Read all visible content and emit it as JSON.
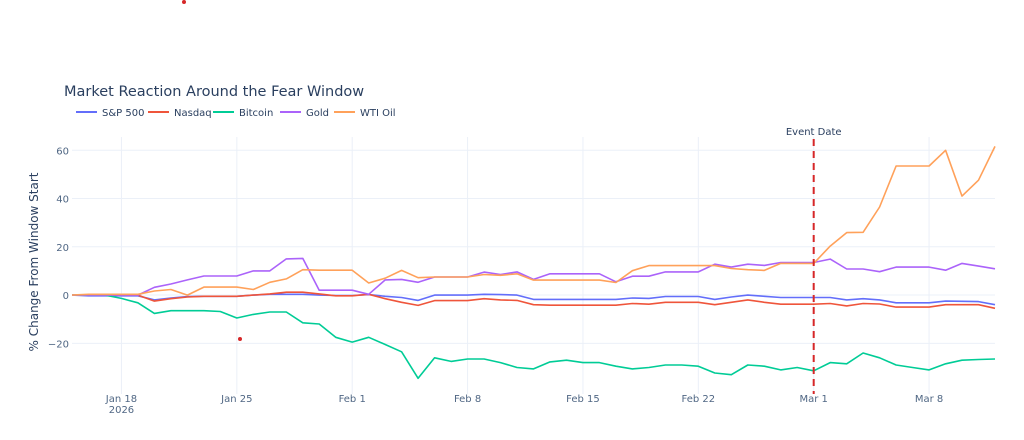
{
  "chart_data": {
    "type": "line",
    "title": "Market Reaction Around the Fear Window",
    "xlabel": "",
    "ylabel": "% Change From Window Start",
    "x_start": "2026-01-15",
    "x_end": "2026-03-12",
    "x_ticks": [
      {
        "date": "2026-01-18",
        "label": "Jan 18",
        "sublabel": "2026"
      },
      {
        "date": "2026-01-25",
        "label": "Jan 25"
      },
      {
        "date": "2026-02-01",
        "label": "Feb 1"
      },
      {
        "date": "2026-02-08",
        "label": "Feb 8"
      },
      {
        "date": "2026-02-15",
        "label": "Feb 15"
      },
      {
        "date": "2026-02-22",
        "label": "Feb 22"
      },
      {
        "date": "2026-03-01",
        "label": "Mar 1"
      },
      {
        "date": "2026-03-08",
        "label": "Mar 8"
      }
    ],
    "y_ticks": [
      -20,
      0,
      20,
      40,
      60
    ],
    "y_tick_labels": [
      "−20",
      "0",
      "20",
      "40",
      "60"
    ],
    "ylim": [
      -41,
      65.5
    ],
    "grid": true,
    "legend_placement": "top-left, horizontal",
    "event": {
      "date": "2026-03-01",
      "label": "Event Date",
      "color": "#d62728"
    },
    "series": [
      {
        "name": "S&P 500",
        "color": "#636efa",
        "values": [
          0,
          -0.3,
          -0.3,
          -0.3,
          -0.3,
          -2,
          -1.2,
          -0.6,
          -0.5,
          -0.5,
          -0.5,
          0,
          0.3,
          0.3,
          0.3,
          0,
          -0.2,
          -0.2,
          0.2,
          -0.5,
          -1,
          -2.2,
          0,
          0,
          0,
          0.3,
          0.2,
          0,
          -1.8,
          -1.8,
          -1.8,
          -1.8,
          -1.8,
          -1.8,
          -1.2,
          -1.4,
          -0.6,
          -0.6,
          -0.6,
          -1.8,
          -0.8,
          0,
          -0.5,
          -1,
          -1,
          -1,
          -1,
          -2,
          -1.5,
          -2,
          -3.2,
          -3.2,
          -3.2,
          -2.5,
          -2.6,
          -2.7,
          -4
        ]
      },
      {
        "name": "Nasdaq",
        "color": "#EF553B",
        "values": [
          0,
          0,
          0,
          0,
          0,
          -2.5,
          -1.5,
          -0.8,
          -0.5,
          -0.5,
          -0.5,
          0,
          0.5,
          1.2,
          1.2,
          0.5,
          -0.3,
          -0.3,
          0.3,
          -1.5,
          -3,
          -4.3,
          -2.3,
          -2.3,
          -2.3,
          -1.5,
          -2,
          -2.2,
          -4,
          -4.2,
          -4.2,
          -4.2,
          -4.2,
          -4.2,
          -3.5,
          -3.8,
          -3,
          -3,
          -3,
          -4,
          -3,
          -2,
          -3,
          -3.8,
          -3.8,
          -3.8,
          -3.5,
          -4.5,
          -3.5,
          -3.7,
          -5,
          -5,
          -5,
          -4,
          -4,
          -4,
          -5.5
        ]
      },
      {
        "name": "Bitcoin",
        "color": "#00cc96",
        "values": [
          0,
          0,
          0,
          -1.4,
          -3.2,
          -7.6,
          -6.5,
          -6.5,
          -6.5,
          -6.8,
          -9.5,
          -8,
          -7,
          -7,
          -11.5,
          -12,
          -17.5,
          -19.5,
          -17.5,
          -20.5,
          -23.5,
          -34.5,
          -26,
          -27.5,
          -26.5,
          -26.5,
          -28,
          -30,
          -30.6,
          -27.7,
          -27,
          -28,
          -28,
          -29.5,
          -30.6,
          -30,
          -29,
          -29,
          -29.5,
          -32.3,
          -33,
          -29,
          -29.5,
          -31,
          -30,
          -31.4,
          -28,
          -28.5,
          -24,
          -26,
          -29,
          -30,
          -31,
          -28.5,
          -27,
          -26.7,
          -26.5
        ]
      },
      {
        "name": "Gold",
        "color": "#ab63fa",
        "values": [
          0,
          0,
          0,
          0,
          0,
          3.2,
          4.6,
          6.3,
          7.9,
          7.9,
          7.9,
          10,
          10,
          15,
          15.2,
          2,
          2,
          2,
          0.3,
          6.3,
          6.5,
          5.3,
          7.5,
          7.5,
          7.5,
          9.5,
          8.5,
          9.6,
          6.5,
          8.8,
          8.8,
          8.8,
          8.8,
          5.5,
          7.8,
          7.8,
          9.6,
          9.6,
          9.6,
          12.8,
          11.6,
          12.8,
          12.3,
          13.5,
          13.5,
          13.5,
          14.9,
          10.8,
          10.8,
          9.7,
          11.6,
          11.6,
          11.6,
          10.3,
          13.1,
          12,
          10.9
        ]
      },
      {
        "name": "WTI Oil",
        "color": "#FFA15A",
        "values": [
          0,
          0.3,
          0.3,
          0.3,
          0.3,
          1.7,
          2.3,
          0,
          3.3,
          3.3,
          3.3,
          2.3,
          5.3,
          6.7,
          10.5,
          10.3,
          10.3,
          10.3,
          5,
          7,
          10.2,
          7.2,
          7.5,
          7.5,
          7.5,
          8.5,
          8.2,
          8.8,
          6.2,
          6.2,
          6.2,
          6.2,
          6.2,
          5.2,
          10.1,
          12.2,
          12.2,
          12.2,
          12.2,
          12.2,
          11,
          10.5,
          10.2,
          13.1,
          13.1,
          13.1,
          20.3,
          25.9,
          26,
          36.5,
          53.5,
          53.5,
          53.5,
          60,
          41,
          47.6,
          61.6
        ]
      }
    ]
  }
}
